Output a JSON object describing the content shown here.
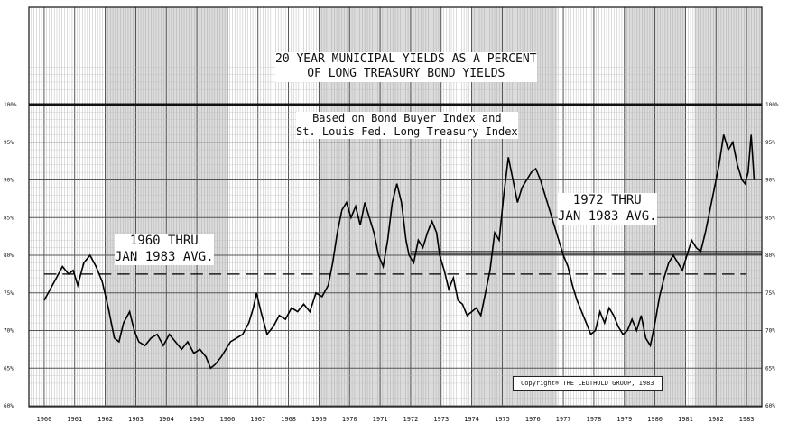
{
  "chart_data": {
    "type": "line",
    "title": "20 YEAR MUNICIPAL YIELDS AS A PERCENT\nOF LONG TREASURY BOND YIELDS",
    "subtitle": "Based on Bond Buyer Index and\nSt. Louis Fed. Long Treasury Index",
    "xlabel": "",
    "ylabel": "",
    "x_ticks": [
      "1960",
      "1961",
      "1962",
      "1963",
      "1964",
      "1965",
      "1966",
      "1967",
      "1968",
      "1969",
      "1970",
      "1971",
      "1972",
      "1973",
      "1974",
      "1975",
      "1976",
      "1977",
      "1978",
      "1979",
      "1980",
      "1981",
      "1982",
      "1983"
    ],
    "y_ticks_left": [
      "60%",
      "65%",
      "70%",
      "75%",
      "80%",
      "85%",
      "90%",
      "95%",
      "100%"
    ],
    "y_ticks_right": [
      "60%",
      "65%",
      "70%",
      "75%",
      "80%",
      "85%",
      "90%",
      "95%",
      "100%"
    ],
    "xlim": [
      1959.5,
      1983.5
    ],
    "ylim": [
      60,
      100
    ],
    "grid": true,
    "series": [
      {
        "values": [
          [
            1960.0,
            74
          ],
          [
            1960.2,
            75.5
          ],
          [
            1960.4,
            77
          ],
          [
            1960.6,
            78.5
          ],
          [
            1960.8,
            77.5
          ],
          [
            1960.95,
            78
          ],
          [
            1961.1,
            76
          ],
          [
            1961.3,
            79
          ],
          [
            1961.5,
            80
          ],
          [
            1961.7,
            78.5
          ],
          [
            1961.9,
            76.5
          ],
          [
            1962.1,
            73
          ],
          [
            1962.3,
            69
          ],
          [
            1962.45,
            68.5
          ],
          [
            1962.6,
            71
          ],
          [
            1962.8,
            72.5
          ],
          [
            1962.95,
            70
          ],
          [
            1963.1,
            68.5
          ],
          [
            1963.3,
            68
          ],
          [
            1963.5,
            69
          ],
          [
            1963.7,
            69.5
          ],
          [
            1963.9,
            68
          ],
          [
            1964.1,
            69.5
          ],
          [
            1964.3,
            68.5
          ],
          [
            1964.5,
            67.5
          ],
          [
            1964.7,
            68.5
          ],
          [
            1964.9,
            67
          ],
          [
            1965.1,
            67.5
          ],
          [
            1965.3,
            66.5
          ],
          [
            1965.45,
            65
          ],
          [
            1965.6,
            65.5
          ],
          [
            1965.8,
            66.5
          ],
          [
            1965.95,
            67.5
          ],
          [
            1966.1,
            68.5
          ],
          [
            1966.3,
            69
          ],
          [
            1966.5,
            69.5
          ],
          [
            1966.7,
            71
          ],
          [
            1966.85,
            73
          ],
          [
            1966.95,
            75
          ],
          [
            1967.1,
            72.5
          ],
          [
            1967.3,
            69.5
          ],
          [
            1967.5,
            70.5
          ],
          [
            1967.7,
            72
          ],
          [
            1967.9,
            71.5
          ],
          [
            1968.1,
            73
          ],
          [
            1968.3,
            72.5
          ],
          [
            1968.5,
            73.5
          ],
          [
            1968.7,
            72.5
          ],
          [
            1968.9,
            75
          ],
          [
            1969.1,
            74.5
          ],
          [
            1969.3,
            76
          ],
          [
            1969.45,
            79
          ],
          [
            1969.6,
            83
          ],
          [
            1969.75,
            86
          ],
          [
            1969.9,
            87
          ],
          [
            1970.05,
            85
          ],
          [
            1970.2,
            86.5
          ],
          [
            1970.35,
            84
          ],
          [
            1970.5,
            87
          ],
          [
            1970.65,
            85
          ],
          [
            1970.8,
            83
          ],
          [
            1970.95,
            80
          ],
          [
            1971.1,
            78.5
          ],
          [
            1971.25,
            82
          ],
          [
            1971.4,
            87
          ],
          [
            1971.55,
            89.5
          ],
          [
            1971.7,
            87
          ],
          [
            1971.85,
            82
          ],
          [
            1971.95,
            80
          ],
          [
            1972.1,
            79
          ],
          [
            1972.25,
            82
          ],
          [
            1972.4,
            81
          ],
          [
            1972.55,
            83
          ],
          [
            1972.7,
            84.5
          ],
          [
            1972.85,
            83
          ],
          [
            1972.95,
            80
          ],
          [
            1973.1,
            78
          ],
          [
            1973.25,
            75.5
          ],
          [
            1973.4,
            77
          ],
          [
            1973.55,
            74
          ],
          [
            1973.7,
            73.5
          ],
          [
            1973.85,
            72
          ],
          [
            1974.0,
            72.5
          ],
          [
            1974.15,
            73
          ],
          [
            1974.3,
            72
          ],
          [
            1974.45,
            75
          ],
          [
            1974.6,
            78
          ],
          [
            1974.75,
            83
          ],
          [
            1974.9,
            82
          ],
          [
            1975.05,
            88
          ],
          [
            1975.2,
            93
          ],
          [
            1975.35,
            90
          ],
          [
            1975.5,
            87
          ],
          [
            1975.65,
            89
          ],
          [
            1975.8,
            90
          ],
          [
            1975.95,
            91
          ],
          [
            1976.1,
            91.5
          ],
          [
            1976.25,
            90
          ],
          [
            1976.4,
            88
          ],
          [
            1976.55,
            86
          ],
          [
            1976.7,
            84
          ],
          [
            1976.85,
            82
          ],
          [
            1977.0,
            80
          ],
          [
            1977.15,
            78.5
          ],
          [
            1977.3,
            76
          ],
          [
            1977.45,
            74
          ],
          [
            1977.6,
            72.5
          ],
          [
            1977.75,
            71
          ],
          [
            1977.9,
            69.5
          ],
          [
            1978.05,
            70
          ],
          [
            1978.2,
            72.5
          ],
          [
            1978.35,
            71
          ],
          [
            1978.5,
            73
          ],
          [
            1978.65,
            72
          ],
          [
            1978.8,
            70.5
          ],
          [
            1978.95,
            69.5
          ],
          [
            1979.1,
            70
          ],
          [
            1979.25,
            71.5
          ],
          [
            1979.4,
            70
          ],
          [
            1979.55,
            72
          ],
          [
            1979.7,
            69
          ],
          [
            1979.85,
            68
          ],
          [
            1980.0,
            71
          ],
          [
            1980.15,
            74.5
          ],
          [
            1980.3,
            77
          ],
          [
            1980.45,
            79
          ],
          [
            1980.6,
            80
          ],
          [
            1980.75,
            79
          ],
          [
            1980.9,
            78
          ],
          [
            1981.05,
            80
          ],
          [
            1981.2,
            82
          ],
          [
            1981.35,
            81
          ],
          [
            1981.5,
            80.5
          ],
          [
            1981.65,
            83
          ],
          [
            1981.8,
            86
          ],
          [
            1981.95,
            89
          ],
          [
            1982.1,
            92
          ],
          [
            1982.25,
            96
          ],
          [
            1982.4,
            94
          ],
          [
            1982.55,
            95
          ],
          [
            1982.7,
            92
          ],
          [
            1982.85,
            90
          ],
          [
            1982.95,
            89.5
          ],
          [
            1983.05,
            91
          ],
          [
            1983.15,
            96
          ],
          [
            1983.25,
            90
          ]
        ]
      }
    ],
    "averages": [
      {
        "label": "1960 THRU\nJAN 1983 AVG.",
        "value": 77.5,
        "x_from": 1960.0,
        "x_to": 1983.0
      },
      {
        "label": "1972 THRU\nJAN 1983 AVG.",
        "value": 80.5,
        "x_from": 1972.0,
        "x_to": 1983.0
      }
    ],
    "reference_line": 100,
    "copyright": "Copyright® THE LEUTHOLD GROUP, 1983"
  }
}
